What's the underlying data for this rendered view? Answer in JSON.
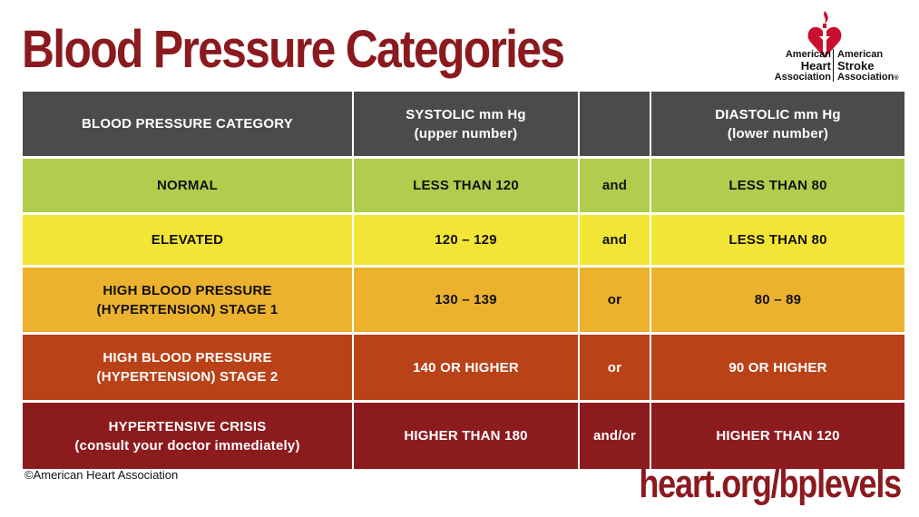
{
  "title": "Blood Pressure Categories",
  "logo": {
    "left_line1": "American",
    "left_line2": "Heart",
    "left_line3": "Association",
    "right_line1": "American",
    "right_line2": "Stroke",
    "right_line3": "Association",
    "trademark": "®",
    "heart_color": "#c8102e"
  },
  "table": {
    "header": {
      "category": "BLOOD PRESSURE CATEGORY",
      "systolic": "SYSTOLIC mm Hg\n(upper number)",
      "connector": "",
      "diastolic": "DIASTOLIC mm Hg\n(lower number)"
    },
    "rows": [
      {
        "category": "NORMAL",
        "systolic": "LESS THAN 120",
        "connector": "and",
        "diastolic": "LESS THAN 80",
        "color": "#b2cc4e"
      },
      {
        "category": "ELEVATED",
        "systolic": "120 – 129",
        "connector": "and",
        "diastolic": "LESS THAN 80",
        "color": "#f3e536"
      },
      {
        "category": "HIGH BLOOD PRESSURE\n(HYPERTENSION) STAGE 1",
        "systolic": "130 – 139",
        "connector": "or",
        "diastolic": "80 – 89",
        "color": "#ecb22e"
      },
      {
        "category": "HIGH BLOOD PRESSURE\n(HYPERTENSION) STAGE 2",
        "systolic": "140 OR HIGHER",
        "connector": "or",
        "diastolic": "90 OR HIGHER",
        "color": "#b94218"
      },
      {
        "category": "HYPERTENSIVE CRISIS\n(consult your doctor immediately)",
        "systolic": "HIGHER THAN 180",
        "connector": "and/or",
        "diastolic": "HIGHER THAN 120",
        "color": "#8c1b1e"
      }
    ]
  },
  "copyright": "©American Heart Association",
  "url": "heart.org/bplevels"
}
